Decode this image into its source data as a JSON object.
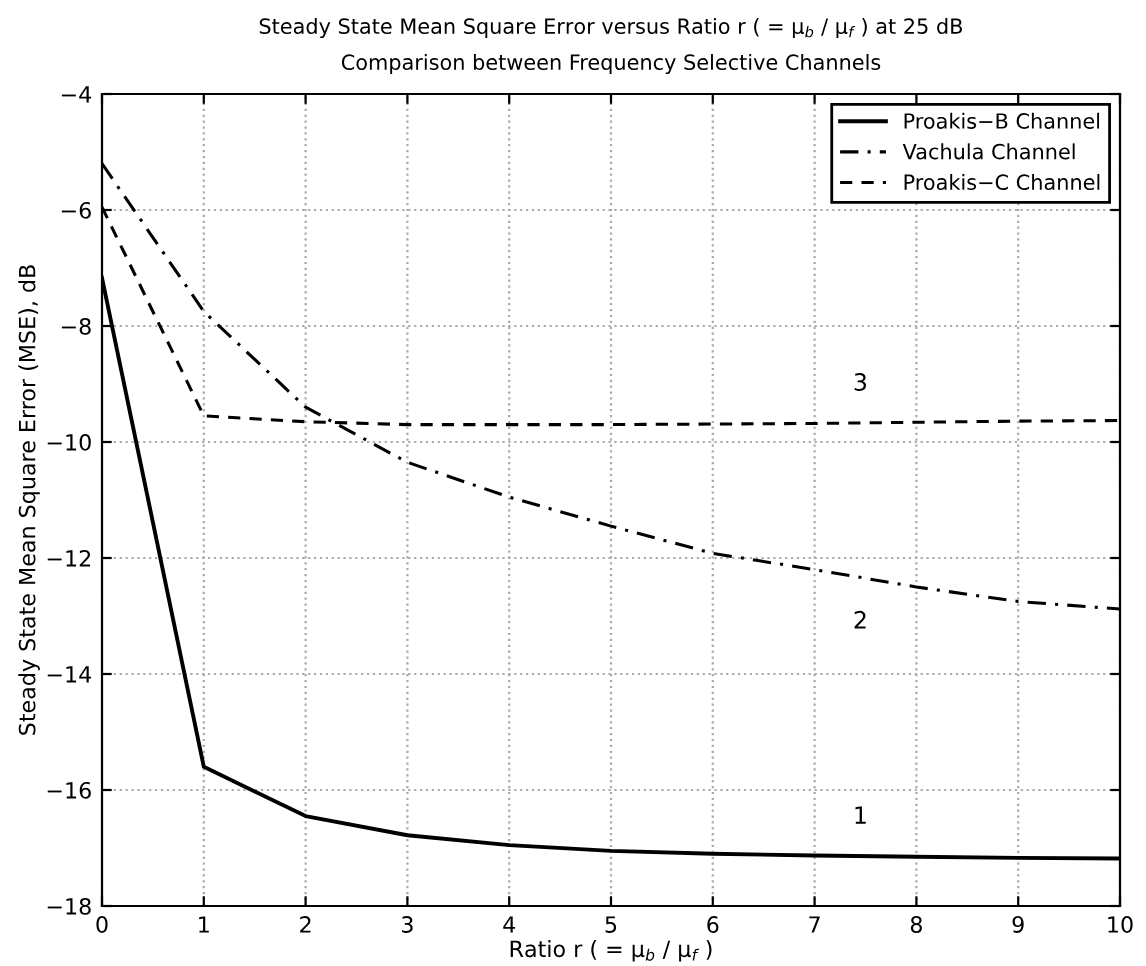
{
  "chart_data": {
    "type": "line",
    "title": "Steady State Mean Square Error versus Ratio r ( = μ$_{b}$ / μ$_{f}$ ) at 25 dB",
    "subtitle": "Comparison between Frequency Selective Channels",
    "xlabel": "Ratio r ( = μ$_{b}$ / μ$_{f}$ )",
    "ylabel": "Steady State Mean Square Error (MSE), dB",
    "x": [
      0,
      1,
      2,
      3,
      4,
      5,
      6,
      7,
      8,
      9,
      10
    ],
    "series": [
      {
        "name": "Proakis−B Channel",
        "color": "#000000",
        "line_style": "solid",
        "values": [
          -7.17,
          -15.6,
          -16.45,
          -16.78,
          -16.95,
          -17.05,
          -17.1,
          -17.13,
          -17.15,
          -17.17,
          -17.18
        ]
      },
      {
        "name": "Vachula Channel",
        "color": "#000000",
        "line_style": "dashdot",
        "values": [
          -5.2,
          -7.75,
          -9.4,
          -10.35,
          -10.95,
          -11.45,
          -11.92,
          -12.2,
          -12.5,
          -12.75,
          -12.88
        ]
      },
      {
        "name": "Proakis−C Channel",
        "color": "#000000",
        "line_style": "dashed",
        "values": [
          -5.95,
          -9.55,
          -9.65,
          -9.7,
          -9.7,
          -9.7,
          -9.69,
          -9.68,
          -9.66,
          -9.64,
          -9.63
        ]
      }
    ],
    "annotations": [
      "3",
      "2",
      "1"
    ],
    "xlim": [
      0,
      10
    ],
    "ylim": [
      -18,
      -4
    ],
    "xticks": [
      0,
      1,
      2,
      3,
      4,
      5,
      6,
      7,
      8,
      9,
      10
    ],
    "yticks": [
      -18,
      -16,
      -14,
      -12,
      -10,
      -8,
      -6,
      -4
    ],
    "grid": true,
    "legend": "top right",
    "marker": "none"
  }
}
